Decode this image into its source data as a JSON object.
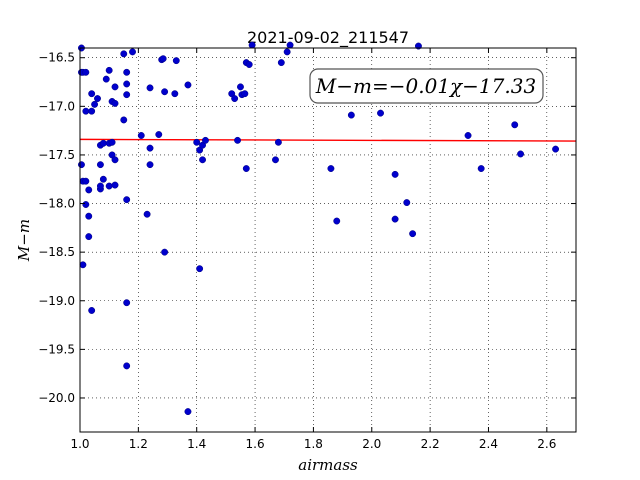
{
  "chart_data": {
    "type": "scatter",
    "title": "2021-09-02_211547",
    "xlabel": "airmass",
    "ylabel": "M−m",
    "xlim": [
      1.0,
      2.7
    ],
    "ylim": [
      -20.35,
      -16.4
    ],
    "y_inverted": true,
    "grid": true,
    "x_ticks": [
      1.0,
      1.2,
      1.4,
      1.6,
      1.8,
      2.0,
      2.2,
      2.4,
      2.6
    ],
    "x_tick_labels": [
      "1.0",
      "1.2",
      "1.4",
      "1.6",
      "1.8",
      "2.0",
      "2.2",
      "2.4",
      "2.6"
    ],
    "y_ticks": [
      -16.5,
      -17.0,
      -17.5,
      -18.0,
      -18.5,
      -19.0,
      -19.5,
      -20.0
    ],
    "y_tick_labels": [
      "−16.5",
      "−17.0",
      "−17.5",
      "−18.0",
      "−18.5",
      "−19.0",
      "−19.5",
      "−20.0"
    ],
    "annotation": "M−m=−0.01χ−17.33",
    "fit_line": {
      "slope": -0.01,
      "intercept": -17.33,
      "color": "#ff0000"
    },
    "marker_color": "#0000cc",
    "points": [
      [
        1.005,
        -16.4
      ],
      [
        1.005,
        -16.65
      ],
      [
        1.01,
        -16.65
      ],
      [
        1.02,
        -16.65
      ],
      [
        1.02,
        -17.05
      ],
      [
        1.04,
        -16.87
      ],
      [
        1.04,
        -17.05
      ],
      [
        1.05,
        -16.98
      ],
      [
        1.06,
        -16.92
      ],
      [
        1.09,
        -16.72
      ],
      [
        1.1,
        -16.63
      ],
      [
        1.12,
        -16.8
      ],
      [
        1.15,
        -16.46
      ],
      [
        1.16,
        -16.65
      ],
      [
        1.16,
        -16.77
      ],
      [
        1.16,
        -16.88
      ],
      [
        1.18,
        -16.44
      ],
      [
        1.28,
        -16.52
      ],
      [
        1.285,
        -16.51
      ],
      [
        1.29,
        -16.85
      ],
      [
        1.33,
        -16.53
      ],
      [
        1.325,
        -16.87
      ],
      [
        1.24,
        -16.81
      ],
      [
        1.37,
        -16.78
      ],
      [
        1.15,
        -17.14
      ],
      [
        1.07,
        -17.4
      ],
      [
        1.08,
        -17.38
      ],
      [
        1.1,
        -17.38
      ],
      [
        1.11,
        -17.37
      ],
      [
        1.11,
        -16.95
      ],
      [
        1.12,
        -16.97
      ],
      [
        1.11,
        -17.5
      ],
      [
        1.12,
        -17.55
      ],
      [
        1.005,
        -17.6
      ],
      [
        1.01,
        -17.77
      ],
      [
        1.02,
        -17.77
      ],
      [
        1.03,
        -17.86
      ],
      [
        1.07,
        -17.85
      ],
      [
        1.07,
        -17.6
      ],
      [
        1.07,
        -17.82
      ],
      [
        1.08,
        -17.75
      ],
      [
        1.1,
        -17.82
      ],
      [
        1.12,
        -17.81
      ],
      [
        1.02,
        -18.01
      ],
      [
        1.03,
        -18.13
      ],
      [
        1.03,
        -18.34
      ],
      [
        1.01,
        -18.63
      ],
      [
        1.04,
        -19.1
      ],
      [
        1.16,
        -17.96
      ],
      [
        1.16,
        -19.02
      ],
      [
        1.16,
        -19.67
      ],
      [
        1.21,
        -17.3
      ],
      [
        1.24,
        -17.43
      ],
      [
        1.24,
        -17.6
      ],
      [
        1.23,
        -18.11
      ],
      [
        1.27,
        -17.29
      ],
      [
        1.29,
        -18.5
      ],
      [
        1.4,
        -17.37
      ],
      [
        1.41,
        -17.45
      ],
      [
        1.42,
        -17.4
      ],
      [
        1.42,
        -17.55
      ],
      [
        1.43,
        -17.35
      ],
      [
        1.41,
        -18.67
      ],
      [
        1.37,
        -20.14
      ],
      [
        1.52,
        -16.87
      ],
      [
        1.53,
        -16.92
      ],
      [
        1.55,
        -16.8
      ],
      [
        1.555,
        -16.88
      ],
      [
        1.565,
        -16.87
      ],
      [
        1.54,
        -17.35
      ],
      [
        1.57,
        -17.64
      ],
      [
        1.57,
        -16.55
      ],
      [
        1.58,
        -16.57
      ],
      [
        1.59,
        -16.37
      ],
      [
        1.67,
        -17.55
      ],
      [
        1.68,
        -17.37
      ],
      [
        1.69,
        -16.55
      ],
      [
        1.71,
        -16.44
      ],
      [
        1.72,
        -16.37
      ],
      [
        1.86,
        -17.64
      ],
      [
        1.88,
        -18.18
      ],
      [
        1.93,
        -17.09
      ],
      [
        2.03,
        -17.07
      ],
      [
        2.08,
        -17.7
      ],
      [
        2.08,
        -18.16
      ],
      [
        2.12,
        -17.99
      ],
      [
        2.14,
        -18.31
      ],
      [
        2.16,
        -16.38
      ],
      [
        2.33,
        -17.3
      ],
      [
        2.375,
        -17.64
      ],
      [
        2.49,
        -17.19
      ],
      [
        2.51,
        -17.49
      ],
      [
        2.63,
        -17.44
      ]
    ]
  }
}
